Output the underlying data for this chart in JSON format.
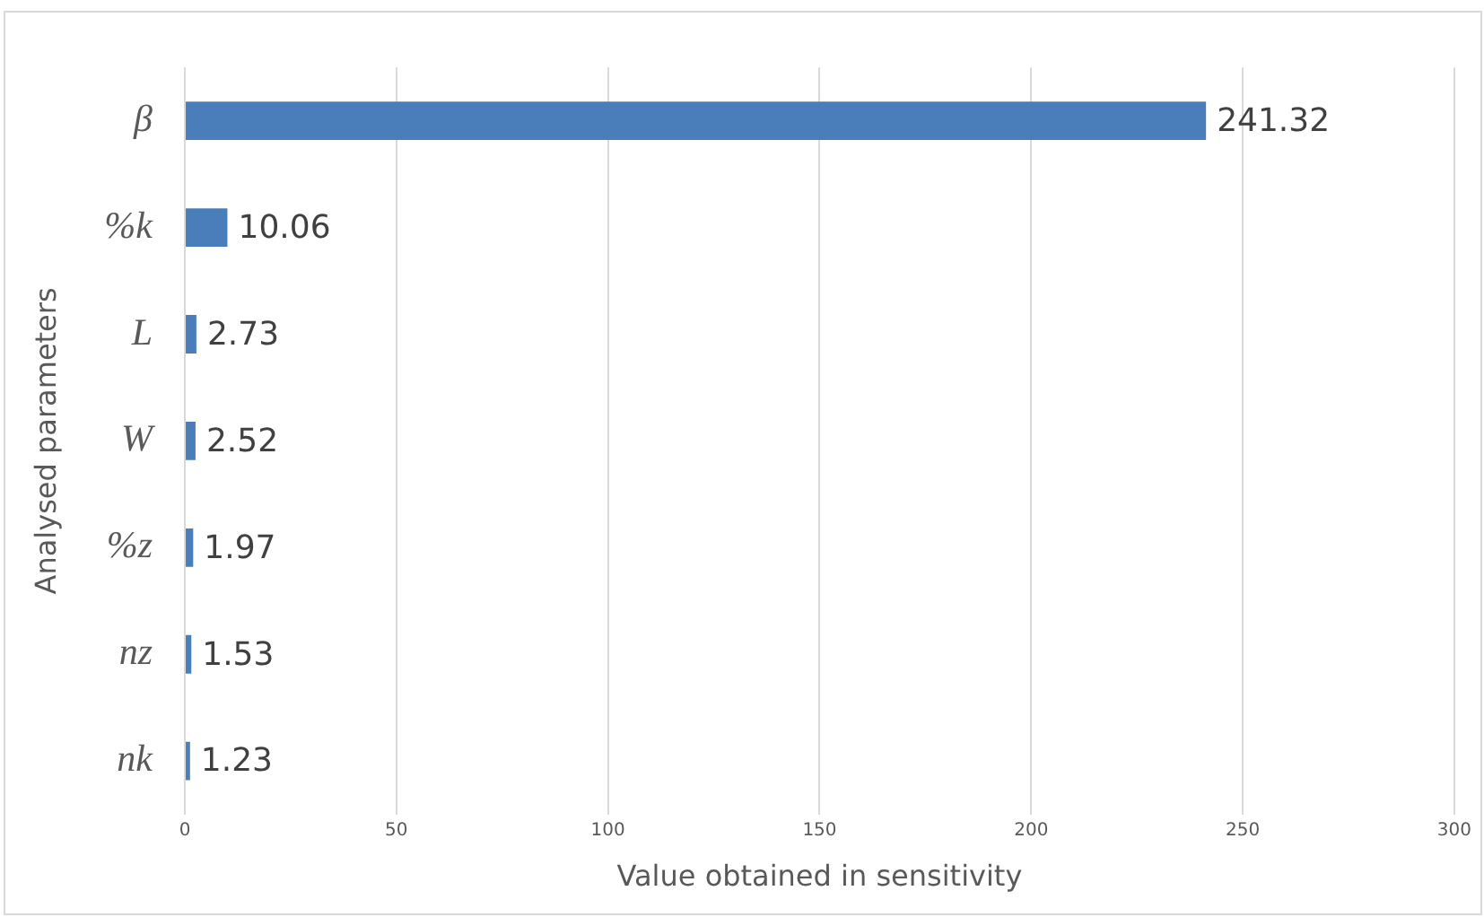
{
  "chart_data": {
    "type": "bar",
    "orientation": "horizontal",
    "xlabel": "Value obtained in sensitivity",
    "ylabel": "Analysed parameters",
    "categories": [
      "β",
      "%k",
      "L",
      "W",
      "%z",
      "nz",
      "nk"
    ],
    "values": [
      241.32,
      10.06,
      2.73,
      2.52,
      1.97,
      1.53,
      1.23
    ],
    "color": "#4a7ebb",
    "xlim": [
      0,
      300
    ],
    "xticks": [
      0,
      50,
      100,
      150,
      200,
      250,
      300
    ],
    "grid": "x",
    "data_labels": true
  }
}
